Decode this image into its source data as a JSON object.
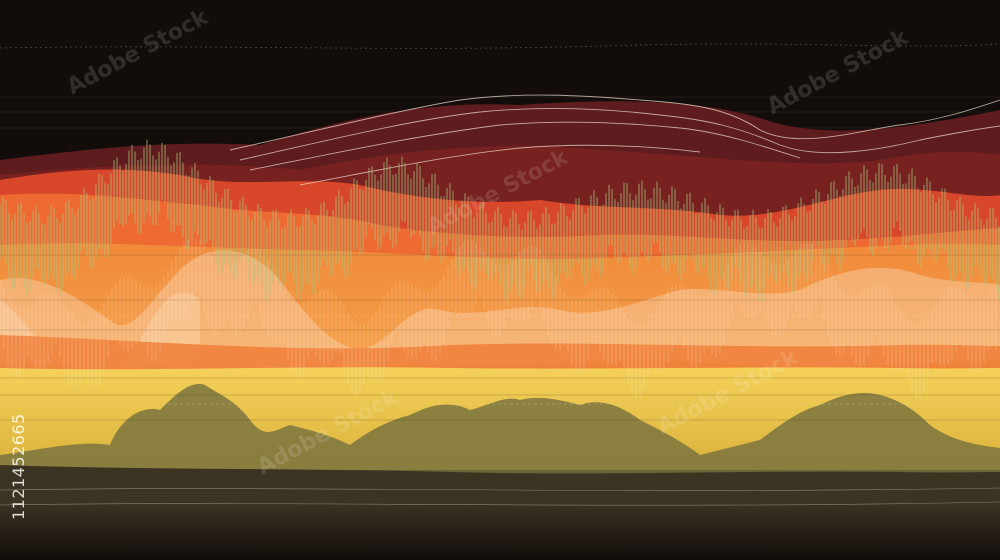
{
  "image": {
    "stock_id": "1121452665",
    "watermark_text": "Adobe Stock"
  },
  "palette": {
    "background": "#120d0b",
    "maroon": "#5e1c1e",
    "deep_red": "#8f2a20",
    "red_orange": "#e2532b",
    "orange": "#f28b3d",
    "light_orange": "#f6a74f",
    "peach": "#f8c89a",
    "yellow": "#efc84a",
    "olive": "#7b7440",
    "dark_olive": "#3b3422",
    "line_light": "#e9d6c6",
    "spike_green": "#a9c47a"
  }
}
